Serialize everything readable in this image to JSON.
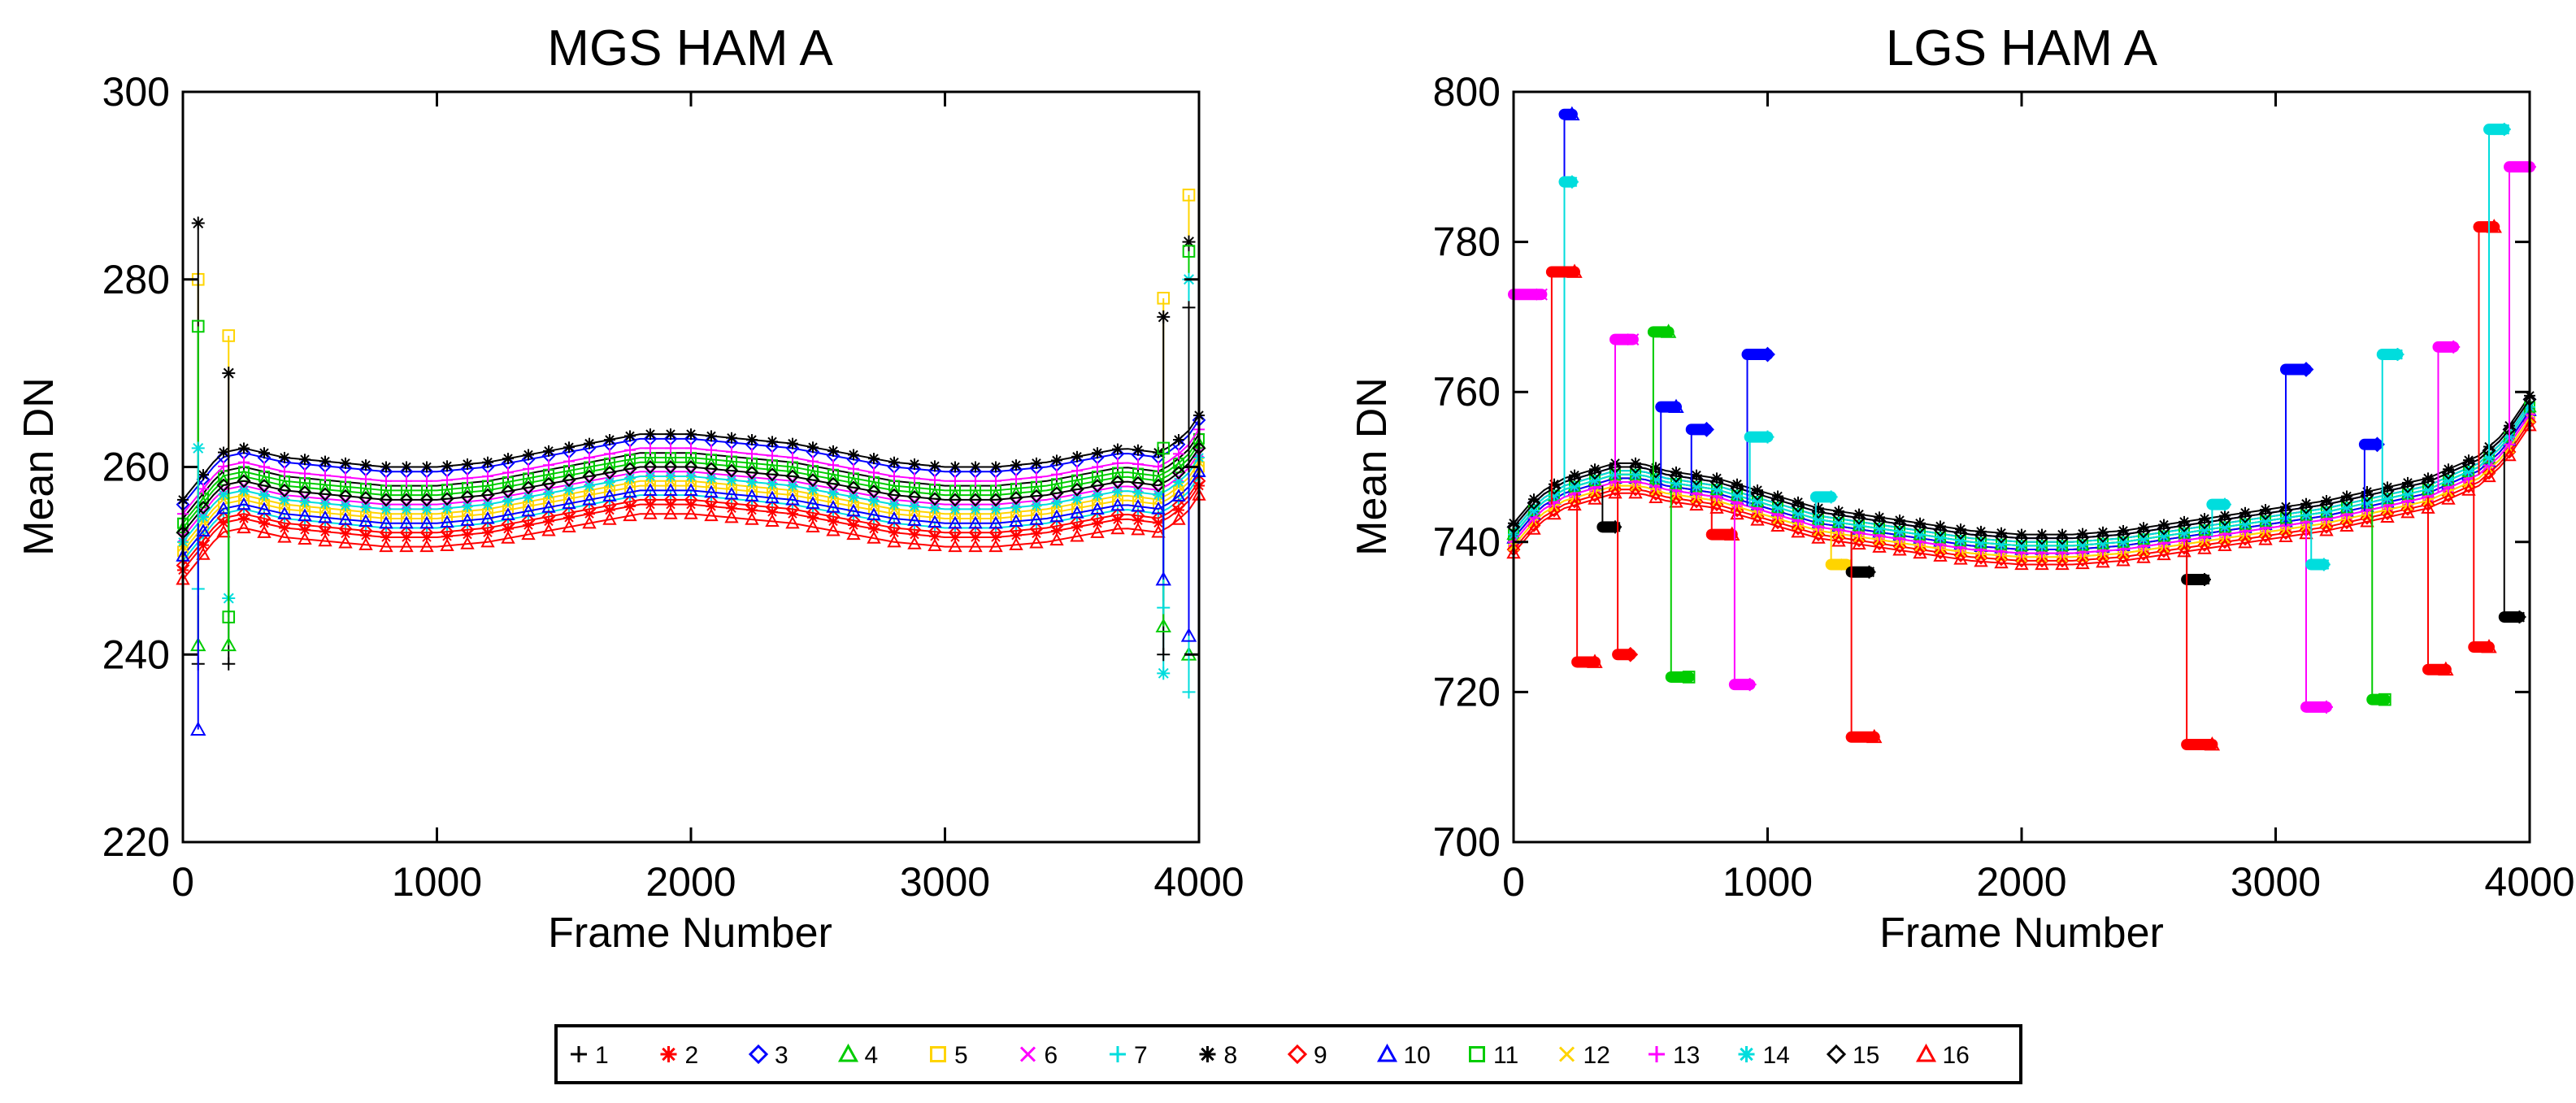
{
  "chart_data": [
    {
      "type": "scatter",
      "title": "MGS HAM A",
      "xlabel": "Frame Number",
      "ylabel": "Mean DN",
      "xlim": [
        0,
        4000
      ],
      "ylim": [
        220,
        300
      ],
      "xticks": [
        0,
        1000,
        2000,
        3000,
        4000
      ],
      "yticks": [
        220,
        240,
        260,
        280,
        300
      ],
      "baseline": {
        "x": [
          0,
          60,
          150,
          240,
          400,
          600,
          800,
          1000,
          1200,
          1400,
          1600,
          1800,
          2000,
          2200,
          2400,
          2600,
          2800,
          3000,
          3200,
          3400,
          3600,
          3700,
          3850,
          3950,
          4000
        ],
        "y": [
          252,
          254,
          257,
          257.5,
          256.5,
          256,
          255.5,
          255.5,
          256,
          257,
          258,
          259,
          259,
          258.5,
          258,
          257,
          256,
          255.5,
          255.5,
          256,
          257,
          257.5,
          257,
          259,
          261
        ]
      },
      "series_offsets": [
        2.5,
        -3,
        4,
        1.5,
        -1,
        0.5,
        -2,
        4.5,
        -2.5,
        -1.5,
        2,
        -0.5,
        3,
        0,
        1,
        -4
      ],
      "spikes": [
        {
          "x": 60,
          "values": [
            280,
            286,
            275,
            262,
            239,
            241,
            247,
            232
          ]
        },
        {
          "x": 180,
          "values": [
            274,
            270,
            244,
            246,
            239,
            241
          ]
        },
        {
          "x": 3860,
          "values": [
            278,
            276,
            262,
            238,
            240,
            243,
            245,
            248
          ]
        },
        {
          "x": 3960,
          "values": [
            289,
            284,
            283,
            280,
            277,
            240,
            236,
            242
          ]
        }
      ]
    },
    {
      "type": "scatter",
      "title": "LGS HAM A",
      "xlabel": "Frame Number",
      "ylabel": "Mean DN",
      "xlim": [
        0,
        4000
      ],
      "ylim": [
        700,
        800
      ],
      "xticks": [
        0,
        1000,
        2000,
        3000,
        4000
      ],
      "yticks": [
        700,
        720,
        740,
        760,
        780,
        800
      ],
      "baseline": {
        "x": [
          0,
          100,
          200,
          300,
          400,
          500,
          600,
          800,
          1000,
          1200,
          1400,
          1600,
          1800,
          2000,
          2200,
          2400,
          2600,
          2800,
          3000,
          3200,
          3400,
          3600,
          3800,
          3900,
          4000
        ],
        "y": [
          740,
          744,
          746,
          747,
          748,
          748,
          747,
          746,
          744,
          742,
          741,
          740,
          739,
          738.5,
          738.5,
          739,
          740,
          741,
          742,
          743,
          744.5,
          746,
          749,
          752,
          757
        ]
      },
      "series_offsets": [
        1.5,
        0.5,
        2,
        1,
        -0.5,
        0,
        1.5,
        2.5,
        -1,
        0.5,
        1,
        -0.5,
        0,
        1,
        2,
        -1.5
      ],
      "excursions": [
        {
          "x0": 200,
          "x1": 230,
          "y": 797,
          "series": 10
        },
        {
          "x0": 200,
          "x1": 230,
          "y": 788,
          "series": 14
        },
        {
          "x0": 150,
          "x1": 240,
          "y": 776,
          "series": 16
        },
        {
          "x0": 0,
          "x1": 110,
          "y": 773,
          "series": 6
        },
        {
          "x0": 250,
          "x1": 320,
          "y": 724,
          "series": 16
        },
        {
          "x0": 350,
          "x1": 400,
          "y": 742,
          "series": 8
        },
        {
          "x0": 400,
          "x1": 470,
          "y": 767,
          "series": 6
        },
        {
          "x0": 410,
          "x1": 460,
          "y": 725,
          "series": 9
        },
        {
          "x0": 550,
          "x1": 610,
          "y": 768,
          "series": 4
        },
        {
          "x0": 580,
          "x1": 640,
          "y": 758,
          "series": 10
        },
        {
          "x0": 620,
          "x1": 690,
          "y": 722,
          "series": 11
        },
        {
          "x0": 700,
          "x1": 760,
          "y": 755,
          "series": 3
        },
        {
          "x0": 780,
          "x1": 860,
          "y": 741,
          "series": 16
        },
        {
          "x0": 870,
          "x1": 930,
          "y": 721,
          "series": 13
        },
        {
          "x0": 920,
          "x1": 1000,
          "y": 765,
          "series": 3
        },
        {
          "x0": 930,
          "x1": 1000,
          "y": 754,
          "series": 7
        },
        {
          "x0": 1190,
          "x1": 1250,
          "y": 746,
          "series": 7
        },
        {
          "x0": 1250,
          "x1": 1310,
          "y": 737,
          "series": 12
        },
        {
          "x0": 1330,
          "x1": 1400,
          "y": 736,
          "series": 8
        },
        {
          "x0": 1330,
          "x1": 1420,
          "y": 714,
          "series": 16
        },
        {
          "x0": 2650,
          "x1": 2720,
          "y": 735,
          "series": 8
        },
        {
          "x0": 2650,
          "x1": 2750,
          "y": 713,
          "series": 16
        },
        {
          "x0": 2750,
          "x1": 2800,
          "y": 745,
          "series": 7
        },
        {
          "x0": 3040,
          "x1": 3120,
          "y": 763,
          "series": 3
        },
        {
          "x0": 3120,
          "x1": 3200,
          "y": 718,
          "series": 13
        },
        {
          "x0": 3140,
          "x1": 3190,
          "y": 737,
          "series": 14
        },
        {
          "x0": 3350,
          "x1": 3400,
          "y": 753,
          "series": 3
        },
        {
          "x0": 3380,
          "x1": 3430,
          "y": 719,
          "series": 11
        },
        {
          "x0": 3420,
          "x1": 3480,
          "y": 765,
          "series": 14
        },
        {
          "x0": 3600,
          "x1": 3670,
          "y": 723,
          "series": 16
        },
        {
          "x0": 3640,
          "x1": 3700,
          "y": 766,
          "series": 13
        },
        {
          "x0": 3780,
          "x1": 3840,
          "y": 726,
          "series": 16
        },
        {
          "x0": 3800,
          "x1": 3860,
          "y": 782,
          "series": 16
        },
        {
          "x0": 3840,
          "x1": 3900,
          "y": 795,
          "series": 14
        },
        {
          "x0": 3920,
          "x1": 4000,
          "y": 790,
          "series": 13
        },
        {
          "x0": 3900,
          "x1": 3960,
          "y": 730,
          "series": 8
        }
      ]
    }
  ],
  "legend": {
    "items": [
      {
        "label": "1",
        "marker": "plus",
        "color": "#000000"
      },
      {
        "label": "2",
        "marker": "asterisk",
        "color": "#ff0000"
      },
      {
        "label": "3",
        "marker": "diamond",
        "color": "#0000ff"
      },
      {
        "label": "4",
        "marker": "triangle",
        "color": "#00cc00"
      },
      {
        "label": "5",
        "marker": "square",
        "color": "#ffd400"
      },
      {
        "label": "6",
        "marker": "x",
        "color": "#ff00ff"
      },
      {
        "label": "7",
        "marker": "plus",
        "color": "#00dddd"
      },
      {
        "label": "8",
        "marker": "asterisk",
        "color": "#000000"
      },
      {
        "label": "9",
        "marker": "diamond",
        "color": "#ff0000"
      },
      {
        "label": "10",
        "marker": "triangle",
        "color": "#0000ff"
      },
      {
        "label": "11",
        "marker": "square",
        "color": "#00cc00"
      },
      {
        "label": "12",
        "marker": "x",
        "color": "#ffd400"
      },
      {
        "label": "13",
        "marker": "plus",
        "color": "#ff00ff"
      },
      {
        "label": "14",
        "marker": "asterisk",
        "color": "#00dddd"
      },
      {
        "label": "15",
        "marker": "diamond",
        "color": "#000000"
      },
      {
        "label": "16",
        "marker": "triangle",
        "color": "#ff0000"
      }
    ]
  }
}
